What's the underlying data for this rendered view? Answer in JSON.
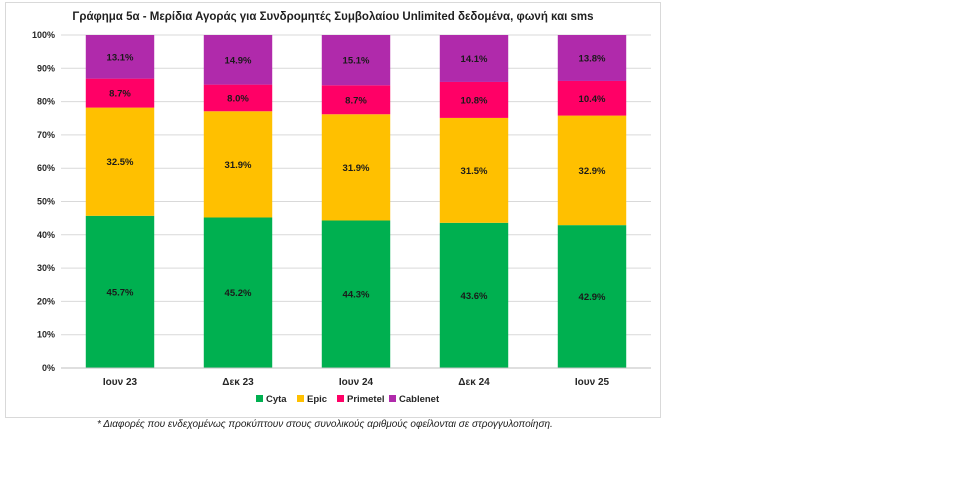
{
  "chart_data": {
    "type": "bar",
    "stacked": true,
    "title": "Γράφημα 5α - Μερίδια Αγοράς για Συνδρομητές Συμβολαίου Unlimited δεδομένα, φωνή και sms",
    "categories": [
      "Ιουν 23",
      "Δεκ 23",
      "Ιουν 24",
      "Δεκ 24",
      "Ιουν 25"
    ],
    "series": [
      {
        "name": "Cyta",
        "color": "#00b050",
        "values": [
          45.7,
          45.2,
          44.3,
          43.6,
          42.9
        ]
      },
      {
        "name": "Epic",
        "color": "#ffc000",
        "values": [
          32.5,
          31.9,
          31.9,
          31.5,
          32.9
        ]
      },
      {
        "name": "Primetel",
        "color": "#ff0066",
        "values": [
          8.7,
          8.0,
          8.7,
          10.8,
          10.4
        ]
      },
      {
        "name": "Cablenet",
        "color": "#b02aab",
        "values": [
          13.1,
          14.9,
          15.1,
          14.1,
          13.8
        ]
      }
    ],
    "value_labels": [
      [
        "45.7%",
        "45.2%",
        "44.3%",
        "43.6%",
        "42.9%"
      ],
      [
        "32.5%",
        "31.9%",
        "31.9%",
        "31.5%",
        "32.9%"
      ],
      [
        "8.7%",
        "8.0%",
        "8.7%",
        "10.8%",
        "10.4%"
      ],
      [
        "13.1%",
        "14.9%",
        "15.1%",
        "14.1%",
        "13.8%"
      ]
    ],
    "yticks": [
      "0%",
      "10%",
      "20%",
      "30%",
      "40%",
      "50%",
      "60%",
      "70%",
      "80%",
      "90%",
      "100%"
    ],
    "ylim": [
      0,
      100
    ],
    "grid": true,
    "legend": "bottom"
  },
  "footnote": "* Διαφορές που ενδεχομένως προκύπτουν στους συνολικούς αριθμούς οφείλονται σε στρογγυλοποίηση."
}
